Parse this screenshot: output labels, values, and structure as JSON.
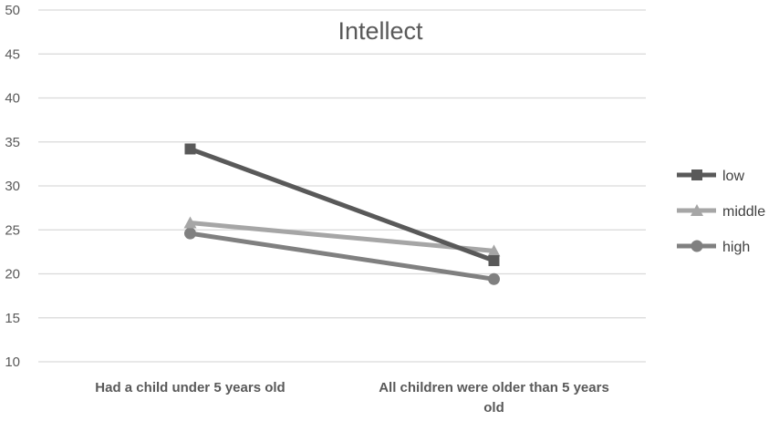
{
  "chart_data": {
    "type": "line",
    "title": "Intellect",
    "categories": [
      "Had a child under 5 years old",
      "All children were older than 5 years old"
    ],
    "category_lines": [
      [
        "Had a child under 5 years old"
      ],
      [
        "All children were older than 5 years",
        "old"
      ]
    ],
    "ylim": [
      10,
      50
    ],
    "yticks": [
      10,
      15,
      20,
      25,
      30,
      35,
      40,
      45,
      50
    ],
    "grid": true,
    "legend_position": "right",
    "series": [
      {
        "name": "low",
        "values": [
          34.2,
          21.5
        ],
        "color": "#595959",
        "marker": "square"
      },
      {
        "name": "middle",
        "values": [
          25.8,
          22.6
        ],
        "color": "#a6a6a6",
        "marker": "triangle"
      },
      {
        "name": "high",
        "values": [
          24.6,
          19.4
        ],
        "color": "#808080",
        "marker": "circle"
      }
    ]
  }
}
